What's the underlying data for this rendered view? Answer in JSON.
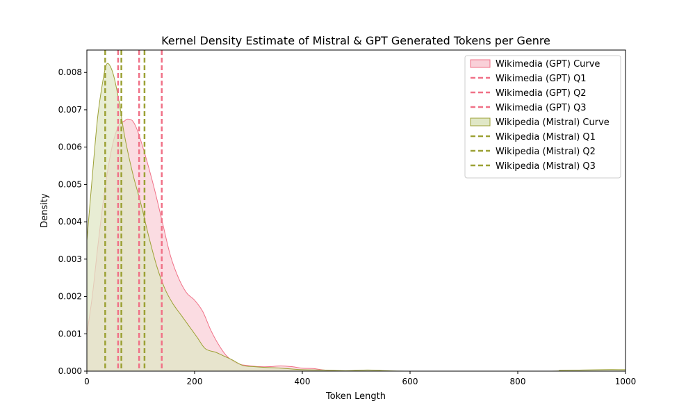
{
  "chart_data": {
    "type": "area",
    "title": "Kernel Density Estimate of Mistral & GPT Generated Tokens per Genre",
    "xlabel": "Token Length",
    "ylabel": "Density",
    "xlim": [
      0,
      1000
    ],
    "ylim": [
      0,
      0.0086
    ],
    "xticks": [
      0,
      200,
      400,
      600,
      800,
      1000
    ],
    "yticks": [
      0,
      0.001,
      0.002,
      0.003,
      0.004,
      0.005,
      0.006,
      0.007,
      0.008
    ],
    "xtick_labels": [
      "0",
      "200",
      "400",
      "600",
      "800",
      "1000"
    ],
    "ytick_labels": [
      "0.000",
      "0.001",
      "0.002",
      "0.003",
      "0.004",
      "0.005",
      "0.006",
      "0.007",
      "0.008"
    ],
    "grid": false,
    "legend_position": "top-right",
    "series": [
      {
        "name": "Wikimedia (GPT) Curve",
        "color": "#f07187",
        "fill": "#f9d0d8",
        "points": [
          [
            0,
            0.001
          ],
          [
            10,
            0.002
          ],
          [
            20,
            0.0033
          ],
          [
            30,
            0.0045
          ],
          [
            40,
            0.0055
          ],
          [
            50,
            0.0062
          ],
          [
            60,
            0.0066
          ],
          [
            70,
            0.0067
          ],
          [
            75,
            0.00675
          ],
          [
            85,
            0.0067
          ],
          [
            95,
            0.0064
          ],
          [
            110,
            0.0057
          ],
          [
            125,
            0.0049
          ],
          [
            140,
            0.004
          ],
          [
            155,
            0.0031
          ],
          [
            170,
            0.0025
          ],
          [
            185,
            0.0021
          ],
          [
            200,
            0.0019
          ],
          [
            215,
            0.0016
          ],
          [
            230,
            0.0011
          ],
          [
            245,
            0.0007
          ],
          [
            260,
            0.0004
          ],
          [
            280,
            0.0002
          ],
          [
            300,
            0.00015
          ],
          [
            320,
            0.00012
          ],
          [
            340,
            0.00012
          ],
          [
            360,
            0.00014
          ],
          [
            380,
            0.00012
          ],
          [
            400,
            8e-05
          ],
          [
            420,
            7e-05
          ],
          [
            440,
            3e-05
          ],
          [
            460,
            1e-05
          ],
          [
            500,
            0.0
          ],
          [
            1000,
            0.0
          ]
        ],
        "quartiles": [
          {
            "name": "Wikimedia (GPT) Q1",
            "x": 58
          },
          {
            "name": "Wikimedia (GPT) Q2",
            "x": 97
          },
          {
            "name": "Wikimedia (GPT) Q3",
            "x": 139
          }
        ]
      },
      {
        "name": "Wikipedia (Mistral) Curve",
        "color": "#9ca135",
        "fill": "#e0e7c6",
        "points": [
          [
            0,
            0.0035
          ],
          [
            10,
            0.0052
          ],
          [
            20,
            0.0068
          ],
          [
            30,
            0.0078
          ],
          [
            36,
            0.0082
          ],
          [
            42,
            0.0082
          ],
          [
            50,
            0.0079
          ],
          [
            60,
            0.0072
          ],
          [
            70,
            0.0063
          ],
          [
            85,
            0.0053
          ],
          [
            100,
            0.0045
          ],
          [
            115,
            0.0036
          ],
          [
            130,
            0.0028
          ],
          [
            145,
            0.0022
          ],
          [
            160,
            0.0018
          ],
          [
            175,
            0.0015
          ],
          [
            190,
            0.0012
          ],
          [
            205,
            0.0009
          ],
          [
            220,
            0.0006
          ],
          [
            240,
            0.0005
          ],
          [
            255,
            0.0004
          ],
          [
            270,
            0.0003
          ],
          [
            290,
            0.00015
          ],
          [
            310,
            0.00012
          ],
          [
            330,
            0.0001
          ],
          [
            360,
            8e-05
          ],
          [
            400,
            4e-05
          ],
          [
            440,
            3e-05
          ],
          [
            480,
            1e-05
          ],
          [
            520,
            3e-05
          ],
          [
            540,
            2e-05
          ],
          [
            600,
            0.0
          ],
          [
            850,
            0.0
          ],
          [
            880,
            2e-05
          ],
          [
            920,
            3e-05
          ],
          [
            960,
            4e-05
          ],
          [
            1000,
            4e-05
          ]
        ],
        "quartiles": [
          {
            "name": "Wikipedia (Mistral) Q1",
            "x": 34
          },
          {
            "name": "Wikipedia (Mistral) Q2",
            "x": 64
          },
          {
            "name": "Wikipedia (Mistral) Q3",
            "x": 107
          }
        ]
      }
    ],
    "legend": [
      {
        "label": "Wikimedia (GPT) Curve",
        "kind": "patch",
        "series": 0
      },
      {
        "label": "Wikimedia (GPT) Q1",
        "kind": "dash",
        "series": 0
      },
      {
        "label": "Wikimedia (GPT) Q2",
        "kind": "dash",
        "series": 0
      },
      {
        "label": "Wikimedia (GPT) Q3",
        "kind": "dash",
        "series": 0
      },
      {
        "label": "Wikipedia (Mistral) Curve",
        "kind": "patch",
        "series": 1
      },
      {
        "label": "Wikipedia (Mistral) Q1",
        "kind": "dash",
        "series": 1
      },
      {
        "label": "Wikipedia (Mistral) Q2",
        "kind": "dash",
        "series": 1
      },
      {
        "label": "Wikipedia (Mistral) Q3",
        "kind": "dash",
        "series": 1
      }
    ]
  }
}
